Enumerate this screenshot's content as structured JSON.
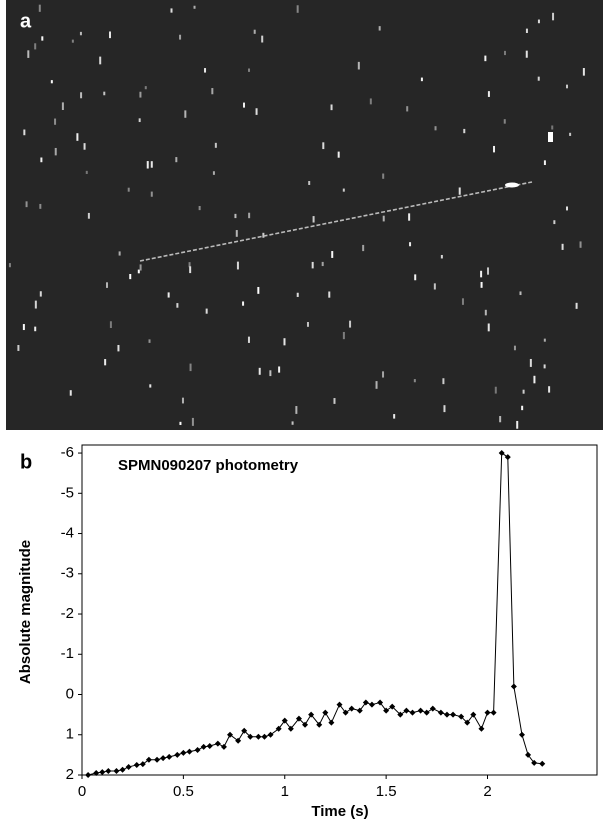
{
  "panel_a": {
    "label": "a"
  },
  "chart_data": {
    "type": "line",
    "panel_label": "b",
    "title": "SPMN090207 photometry",
    "x_label": "Time (s)",
    "y_label": "Absolute magnitude",
    "x": [
      0.03,
      0.07,
      0.1,
      0.13,
      0.17,
      0.2,
      0.23,
      0.27,
      0.3,
      0.33,
      0.37,
      0.4,
      0.43,
      0.47,
      0.5,
      0.53,
      0.57,
      0.6,
      0.63,
      0.67,
      0.7,
      0.73,
      0.77,
      0.8,
      0.83,
      0.87,
      0.9,
      0.93,
      0.97,
      1.0,
      1.03,
      1.07,
      1.1,
      1.13,
      1.17,
      1.2,
      1.23,
      1.27,
      1.3,
      1.33,
      1.37,
      1.4,
      1.43,
      1.47,
      1.5,
      1.53,
      1.57,
      1.6,
      1.63,
      1.67,
      1.7,
      1.73,
      1.77,
      1.8,
      1.83,
      1.87,
      1.9,
      1.93,
      1.97,
      2.0,
      2.03,
      2.07,
      2.1,
      2.13,
      2.17,
      2.2,
      2.23,
      2.27
    ],
    "values": [
      2.0,
      1.95,
      1.93,
      1.9,
      1.9,
      1.87,
      1.8,
      1.75,
      1.73,
      1.62,
      1.62,
      1.58,
      1.55,
      1.5,
      1.45,
      1.42,
      1.38,
      1.3,
      1.28,
      1.22,
      1.3,
      1.0,
      1.15,
      0.9,
      1.05,
      1.05,
      1.05,
      1.0,
      0.85,
      0.65,
      0.85,
      0.6,
      0.75,
      0.5,
      0.75,
      0.45,
      0.7,
      0.25,
      0.45,
      0.35,
      0.4,
      0.2,
      0.25,
      0.2,
      0.4,
      0.3,
      0.5,
      0.4,
      0.45,
      0.4,
      0.45,
      0.35,
      0.45,
      0.5,
      0.5,
      0.55,
      0.7,
      0.5,
      0.85,
      0.45,
      0.45,
      -6.0,
      -5.9,
      -0.2,
      1.0,
      1.5,
      1.7,
      1.72
    ],
    "color": "#000000",
    "xlim": [
      0,
      2.54
    ],
    "xticks": [
      0,
      0.5,
      1,
      1.5,
      2
    ],
    "ylim": [
      2,
      -6.2
    ],
    "yticks": [
      -6,
      -5,
      -4,
      -3,
      -2,
      -1,
      0,
      1,
      2
    ],
    "grid": false
  }
}
